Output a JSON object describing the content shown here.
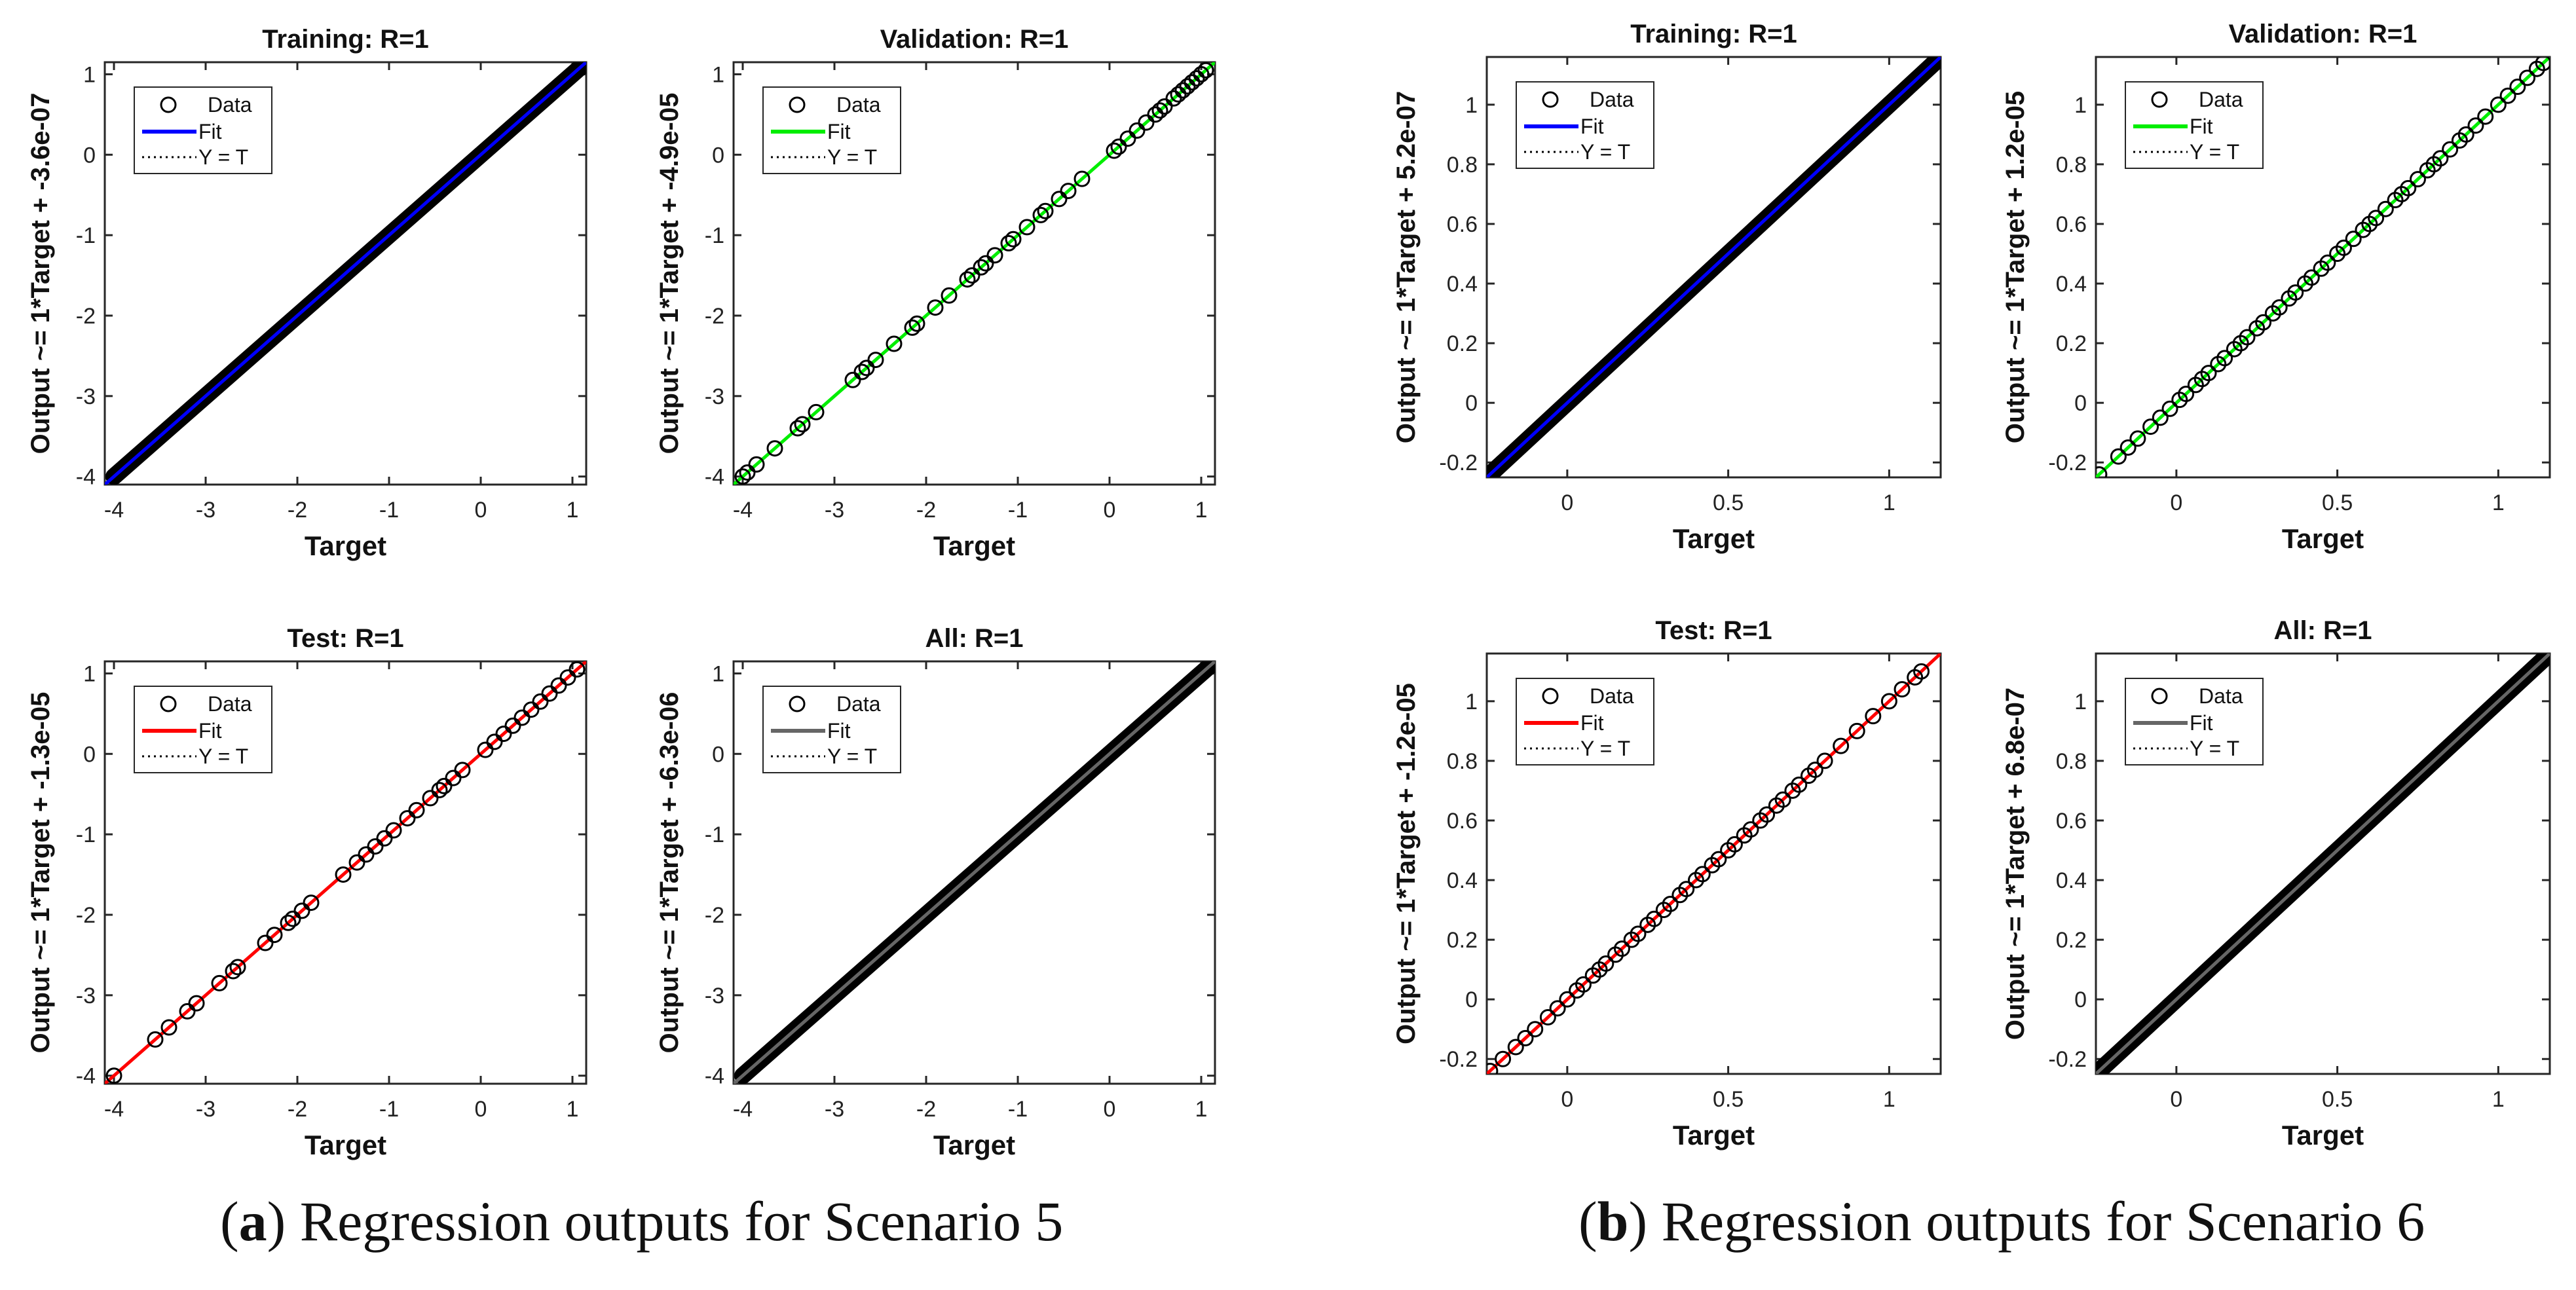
{
  "captions": [
    {
      "letter": "a",
      "text": ") Regression outputs for Scenario 5"
    },
    {
      "letter": "b",
      "text": ") Regression outputs for Scenario 6"
    }
  ],
  "chart_data": [
    {
      "type": "scatter",
      "scenario": 5,
      "title": "Training: R=1",
      "xlabel": "Target",
      "ylabel": "Output ~= 1*Target + -3.6e-07",
      "xlim": [
        -4.1,
        1.15
      ],
      "ylim": [
        -4.1,
        1.15
      ],
      "xticks": [
        -4,
        -3,
        -2,
        -1,
        0,
        1
      ],
      "yticks": [
        -4,
        -3,
        -2,
        -1,
        0,
        1
      ],
      "tick_labels": [
        "-4",
        "-3",
        "-2",
        "-1",
        "0",
        "1"
      ],
      "fit_color": "#0000ff",
      "fit": {
        "slope": 1,
        "intercept": -3.6e-07
      },
      "data_range": [
        -4,
        1.1
      ],
      "dense": true,
      "legend": [
        "Data",
        "Fit",
        "Y = T"
      ],
      "legend_position": "top-left"
    },
    {
      "type": "scatter",
      "scenario": 5,
      "title": "Validation: R=1",
      "xlabel": "Target",
      "ylabel": "Output ~= 1*Target + -4.9e-05",
      "xlim": [
        -4.1,
        1.15
      ],
      "ylim": [
        -4.1,
        1.15
      ],
      "xticks": [
        -4,
        -3,
        -2,
        -1,
        0,
        1
      ],
      "yticks": [
        -4,
        -3,
        -2,
        -1,
        0,
        1
      ],
      "tick_labels": [
        "-4",
        "-3",
        "-2",
        "-1",
        "0",
        "1"
      ],
      "fit_color": "#00ee00",
      "fit": {
        "slope": 1,
        "intercept": -4.9e-05
      },
      "data_range": [
        -4,
        1.1
      ],
      "dense": false,
      "points": [
        -4.0,
        -3.95,
        -3.85,
        -3.65,
        -3.4,
        -3.35,
        -3.2,
        -2.8,
        -2.7,
        -2.65,
        -2.55,
        -2.35,
        -2.15,
        -2.1,
        -1.9,
        -1.75,
        -1.55,
        -1.5,
        -1.4,
        -1.35,
        -1.25,
        -1.1,
        -1.05,
        -0.9,
        -0.75,
        -0.7,
        -0.55,
        -0.45,
        -0.3,
        0.05,
        0.1,
        0.2,
        0.3,
        0.4,
        0.5,
        0.55,
        0.6,
        0.7,
        0.75,
        0.8,
        0.85,
        0.9,
        0.95,
        1.0,
        1.05
      ],
      "legend": [
        "Data",
        "Fit",
        "Y = T"
      ],
      "legend_position": "top-left"
    },
    {
      "type": "scatter",
      "scenario": 5,
      "title": "Test: R=1",
      "xlabel": "Target",
      "ylabel": "Output ~= 1*Target + -1.3e-05",
      "xlim": [
        -4.1,
        1.15
      ],
      "ylim": [
        -4.1,
        1.15
      ],
      "xticks": [
        -4,
        -3,
        -2,
        -1,
        0,
        1
      ],
      "yticks": [
        -4,
        -3,
        -2,
        -1,
        0,
        1
      ],
      "tick_labels": [
        "-4",
        "-3",
        "-2",
        "-1",
        "0",
        "1"
      ],
      "fit_color": "#ff0000",
      "fit": {
        "slope": 1,
        "intercept": -1.3e-05
      },
      "data_range": [
        -4,
        1.1
      ],
      "dense": false,
      "points": [
        -4.0,
        -3.55,
        -3.4,
        -3.2,
        -3.1,
        -2.85,
        -2.7,
        -2.65,
        -2.35,
        -2.25,
        -2.1,
        -2.05,
        -1.95,
        -1.85,
        -1.5,
        -1.35,
        -1.25,
        -1.15,
        -1.05,
        -0.95,
        -0.8,
        -0.7,
        -0.55,
        -0.45,
        -0.4,
        -0.3,
        -0.2,
        0.05,
        0.15,
        0.25,
        0.35,
        0.45,
        0.55,
        0.65,
        0.75,
        0.85,
        0.95,
        1.05
      ],
      "legend": [
        "Data",
        "Fit",
        "Y = T"
      ],
      "legend_position": "top-left"
    },
    {
      "type": "scatter",
      "scenario": 5,
      "title": "All: R=1",
      "xlabel": "Target",
      "ylabel": "Output ~= 1*Target + -6.3e-06",
      "xlim": [
        -4.1,
        1.15
      ],
      "ylim": [
        -4.1,
        1.15
      ],
      "xticks": [
        -4,
        -3,
        -2,
        -1,
        0,
        1
      ],
      "yticks": [
        -4,
        -3,
        -2,
        -1,
        0,
        1
      ],
      "tick_labels": [
        "-4",
        "-3",
        "-2",
        "-1",
        "0",
        "1"
      ],
      "fit_color": "#666666",
      "fit": {
        "slope": 1,
        "intercept": -6.3e-06
      },
      "data_range": [
        -4,
        1.1
      ],
      "dense": true,
      "legend": [
        "Data",
        "Fit",
        "Y = T"
      ],
      "legend_position": "top-left"
    },
    {
      "type": "scatter",
      "scenario": 6,
      "title": "Training: R=1",
      "xlabel": "Target",
      "ylabel": "Output ~= 1*Target + 5.2e-07",
      "xlim": [
        -0.25,
        1.16
      ],
      "ylim": [
        -0.25,
        1.16
      ],
      "xticks": [
        0,
        0.5,
        1
      ],
      "yticks": [
        -0.2,
        0,
        0.2,
        0.4,
        0.6,
        0.8,
        1
      ],
      "xtick_labels": [
        "0",
        "0.5",
        "1"
      ],
      "ytick_labels": [
        "-0.2",
        "0",
        "0.2",
        "0.4",
        "0.6",
        "0.8",
        "1"
      ],
      "fit_color": "#0000ff",
      "fit": {
        "slope": 1,
        "intercept": 5.2e-07
      },
      "data_range": [
        -0.24,
        1.14
      ],
      "dense": true,
      "legend": [
        "Data",
        "Fit",
        "Y = T"
      ],
      "legend_position": "top-left"
    },
    {
      "type": "scatter",
      "scenario": 6,
      "title": "Validation: R=1",
      "xlabel": "Target",
      "ylabel": "Output ~= 1*Target + 1.2e-05",
      "xlim": [
        -0.25,
        1.16
      ],
      "ylim": [
        -0.25,
        1.16
      ],
      "xticks": [
        0,
        0.5,
        1
      ],
      "yticks": [
        -0.2,
        0,
        0.2,
        0.4,
        0.6,
        0.8,
        1
      ],
      "xtick_labels": [
        "0",
        "0.5",
        "1"
      ],
      "ytick_labels": [
        "-0.2",
        "0",
        "0.2",
        "0.4",
        "0.6",
        "0.8",
        "1"
      ],
      "fit_color": "#00ee00",
      "fit": {
        "slope": 1,
        "intercept": 1.2e-05
      },
      "data_range": [
        -0.24,
        1.14
      ],
      "dense": false,
      "points": [
        -0.24,
        -0.18,
        -0.15,
        -0.12,
        -0.08,
        -0.05,
        -0.02,
        0.01,
        0.03,
        0.06,
        0.08,
        0.1,
        0.13,
        0.15,
        0.18,
        0.2,
        0.22,
        0.25,
        0.27,
        0.3,
        0.32,
        0.35,
        0.37,
        0.4,
        0.42,
        0.45,
        0.47,
        0.5,
        0.52,
        0.55,
        0.58,
        0.6,
        0.62,
        0.65,
        0.68,
        0.7,
        0.72,
        0.75,
        0.78,
        0.8,
        0.82,
        0.85,
        0.88,
        0.9,
        0.93,
        0.96,
        1.0,
        1.03,
        1.06,
        1.09,
        1.12,
        1.14
      ],
      "legend": [
        "Data",
        "Fit",
        "Y = T"
      ],
      "legend_position": "top-left"
    },
    {
      "type": "scatter",
      "scenario": 6,
      "title": "Test: R=1",
      "xlabel": "Target",
      "ylabel": "Output ~= 1*Target + -1.2e-05",
      "xlim": [
        -0.25,
        1.16
      ],
      "ylim": [
        -0.25,
        1.16
      ],
      "xticks": [
        0,
        0.5,
        1
      ],
      "yticks": [
        -0.2,
        0,
        0.2,
        0.4,
        0.6,
        0.8,
        1
      ],
      "xtick_labels": [
        "0",
        "0.5",
        "1"
      ],
      "ytick_labels": [
        "-0.2",
        "0",
        "0.2",
        "0.4",
        "0.6",
        "0.8",
        "1"
      ],
      "fit_color": "#ff0000",
      "fit": {
        "slope": 1,
        "intercept": -1.2e-05
      },
      "data_range": [
        -0.24,
        1.14
      ],
      "dense": false,
      "points": [
        -0.24,
        -0.2,
        -0.16,
        -0.13,
        -0.1,
        -0.06,
        -0.03,
        0.0,
        0.03,
        0.05,
        0.08,
        0.1,
        0.12,
        0.15,
        0.17,
        0.2,
        0.22,
        0.25,
        0.27,
        0.3,
        0.32,
        0.35,
        0.37,
        0.4,
        0.42,
        0.45,
        0.47,
        0.5,
        0.52,
        0.55,
        0.57,
        0.6,
        0.62,
        0.65,
        0.67,
        0.7,
        0.72,
        0.75,
        0.77,
        0.8,
        0.85,
        0.9,
        0.95,
        1.0,
        1.04,
        1.08,
        1.1
      ],
      "legend": [
        "Data",
        "Fit",
        "Y = T"
      ],
      "legend_position": "top-left"
    },
    {
      "type": "scatter",
      "scenario": 6,
      "title": "All: R=1",
      "xlabel": "Target",
      "ylabel": "Output ~= 1*Target + 6.8e-07",
      "xlim": [
        -0.25,
        1.16
      ],
      "ylim": [
        -0.25,
        1.16
      ],
      "xticks": [
        0,
        0.5,
        1
      ],
      "yticks": [
        -0.2,
        0,
        0.2,
        0.4,
        0.6,
        0.8,
        1
      ],
      "xtick_labels": [
        "0",
        "0.5",
        "1"
      ],
      "ytick_labels": [
        "-0.2",
        "0",
        "0.2",
        "0.4",
        "0.6",
        "0.8",
        "1"
      ],
      "fit_color": "#666666",
      "fit": {
        "slope": 1,
        "intercept": 6.8e-07
      },
      "data_range": [
        -0.24,
        1.14
      ],
      "dense": true,
      "legend": [
        "Data",
        "Fit",
        "Y = T"
      ],
      "legend_position": "top-left"
    }
  ]
}
